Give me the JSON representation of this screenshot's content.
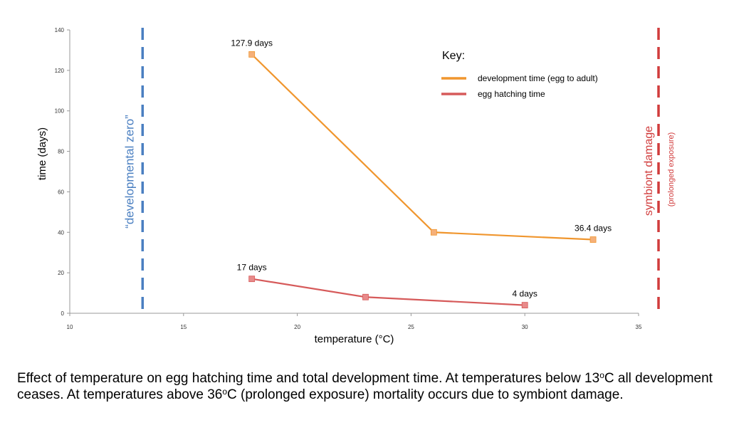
{
  "chart_data": {
    "type": "line",
    "title": "",
    "xlabel": "temperature (°C)",
    "ylabel": "time (days)",
    "xlim": [
      10,
      36
    ],
    "ylim": [
      0,
      140
    ],
    "x_ticks": [
      10,
      15,
      20,
      25,
      30,
      35
    ],
    "y_ticks": [
      0,
      20,
      40,
      60,
      80,
      100,
      120,
      140
    ],
    "grid": false,
    "legend_title": "Key:",
    "legend_position": "top-right",
    "series": [
      {
        "name": "development time (egg to adult)",
        "color": "#f0962e",
        "marker_color": "#f5b07a",
        "x": [
          18,
          26,
          33
        ],
        "y": [
          127.9,
          40,
          36.4
        ]
      },
      {
        "name": "egg hatching time",
        "color": "#d65a5a",
        "marker_color": "#e88a8a",
        "x": [
          18,
          23,
          30
        ],
        "y": [
          17,
          8,
          4
        ]
      }
    ],
    "data_labels": [
      {
        "text": "127.9 days",
        "x": 18,
        "y": 127.9
      },
      {
        "text": "36.4 days",
        "x": 33,
        "y": 36.4
      },
      {
        "text": "17 days",
        "x": 18,
        "y": 17
      },
      {
        "text": "4 days",
        "x": 30,
        "y": 4
      }
    ],
    "reference_lines": [
      {
        "x": 13.2,
        "label": "“developmental zero”",
        "color": "#4a7fc1"
      },
      {
        "x": 36,
        "label": "symbiont damage",
        "sublabel": "(prolonged exposure)",
        "color": "#d13c3c"
      }
    ]
  },
  "caption": {
    "part1": "Effect of temperature on egg hatching time and total development time. At temperatures below 13",
    "sup1": "o",
    "part2": "C all development ceases. At temperatures above 36",
    "sup2": "o",
    "part3": "C (prolonged exposure) mortality occurs due to symbiont damage."
  }
}
